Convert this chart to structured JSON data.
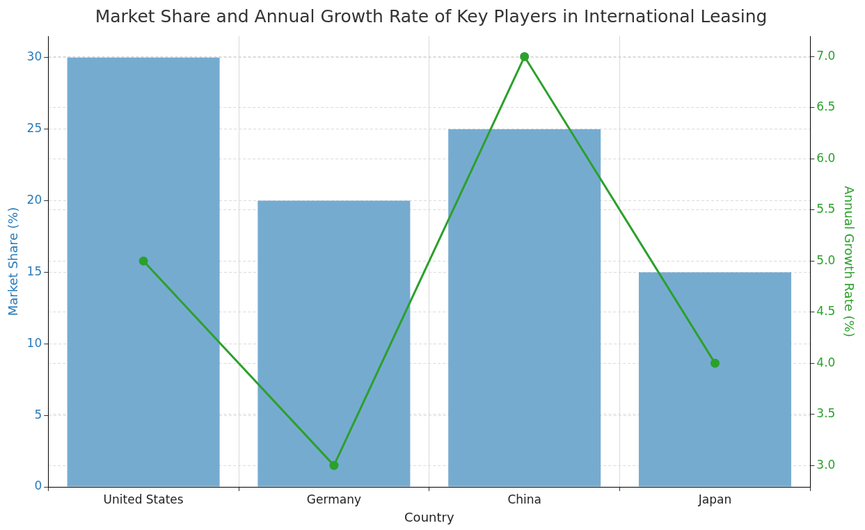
{
  "chart_data": {
    "type": "bar",
    "title": "Market Share and Annual Growth Rate of Key Players in International Leasing",
    "xlabel": "Country",
    "ylabel": "Market Share (%)",
    "y2label": "Annual Growth Rate (%)",
    "categories": [
      "United States",
      "Germany",
      "China",
      "Japan"
    ],
    "series": [
      {
        "color": "#76abd0",
        "values": [
          30,
          20,
          25,
          15
        ]
      },
      {
        "type": "line",
        "axis": "y2",
        "color": "#2ca02c",
        "values": [
          5.0,
          3.0,
          7.0,
          4.0
        ]
      }
    ],
    "ylim": [
      0,
      31.5
    ],
    "yticks": [
      0,
      5,
      10,
      15,
      20,
      25,
      30
    ],
    "y2lim": [
      2.79,
      7.2
    ],
    "y2ticks": [
      {
        "value": 3,
        "label": "3.0"
      },
      {
        "value": 3.5,
        "label": "3.5"
      },
      {
        "value": 4,
        "label": "4.0"
      },
      {
        "value": 4.5,
        "label": "4.5"
      },
      {
        "value": 5,
        "label": "5.0"
      },
      {
        "value": 5.5,
        "label": "5.5"
      },
      {
        "value": 6,
        "label": "6.0"
      },
      {
        "value": 6.5,
        "label": "6.5"
      },
      {
        "value": 7,
        "label": "7.0"
      }
    ],
    "grid": true,
    "legend": false,
    "marker": "circle",
    "line_style": "solid"
  }
}
